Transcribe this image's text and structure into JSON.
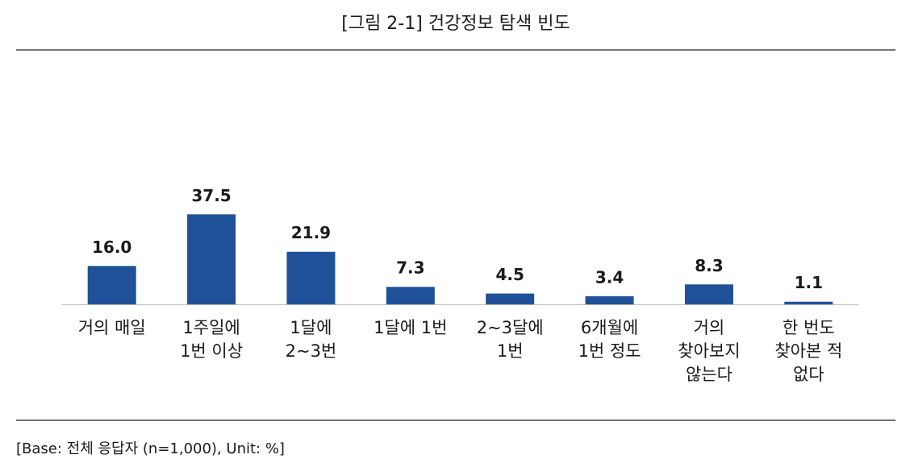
{
  "chart_data": {
    "type": "bar",
    "title": "[그림 2-1] 건강정보 탐색 빈도",
    "categories": [
      [
        "거의 매일"
      ],
      [
        "1주일에",
        "1번 이상"
      ],
      [
        "1달에",
        "2~3번"
      ],
      [
        "1달에 1번"
      ],
      [
        "2~3달에",
        "1번"
      ],
      [
        "6개월에",
        "1번 정도"
      ],
      [
        "거의",
        "찾아보지",
        "않는다"
      ],
      [
        "한 번도",
        "찾아본 적",
        "없다"
      ]
    ],
    "values": [
      16.0,
      37.5,
      21.9,
      7.3,
      4.5,
      3.4,
      8.3,
      1.1
    ],
    "value_labels": [
      "16.0",
      "37.5",
      "21.9",
      "7.3",
      "4.5",
      "3.4",
      "8.3",
      "1.1"
    ],
    "color": "#1f5199",
    "ylim": [
      0,
      50
    ],
    "note": "[Base: 전체 응답자 (n=1,000), Unit: %]"
  }
}
